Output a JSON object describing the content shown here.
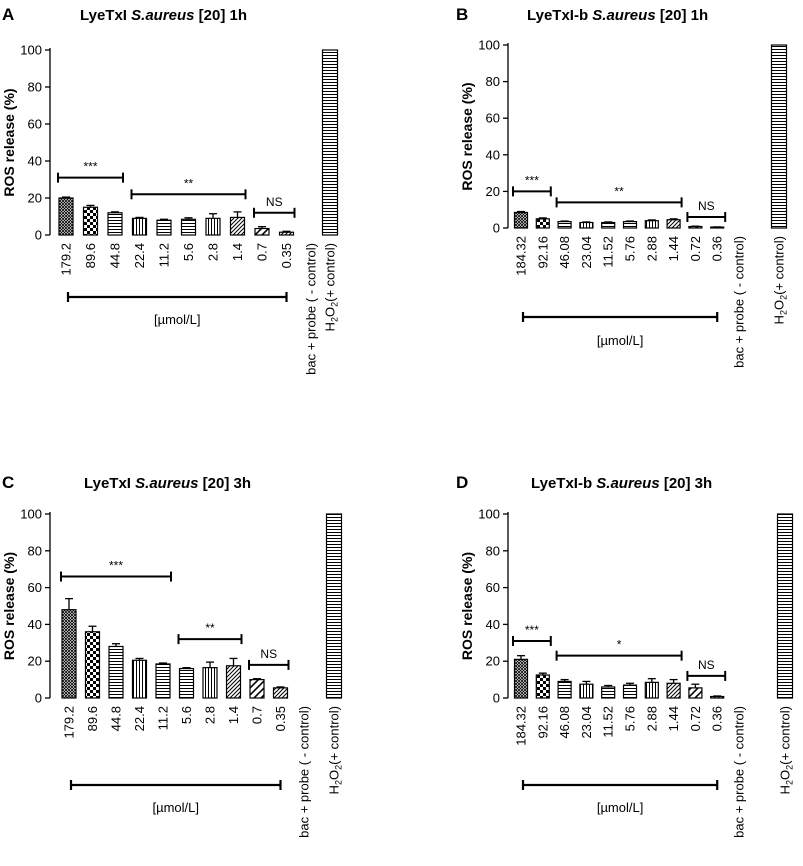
{
  "chart_data": [
    {
      "panel": "A",
      "type": "bar",
      "title_prefix": "LyeTxI ",
      "title_italic": "S.aureus",
      "title_suffix": " [20] 1h",
      "ylabel": "ROS release (%)",
      "ylim": [
        0,
        100
      ],
      "yticks": [
        0,
        20,
        40,
        60,
        80,
        100
      ],
      "categories": [
        "179.2",
        "89.6",
        "44.8",
        "22.4",
        "11.2",
        "5.6",
        "2.8",
        "1.4",
        "0.7",
        "0.35",
        "bac + probe ( - control)",
        "H2O2(+ control)"
      ],
      "values": [
        20,
        15,
        12,
        9,
        8,
        8.5,
        9,
        9.5,
        3.5,
        1.5,
        0,
        100
      ],
      "errors": [
        0.5,
        1,
        0.5,
        0.5,
        0.5,
        0.8,
        2.5,
        3,
        1,
        0.5,
        0,
        0
      ],
      "patterns": [
        "crosshatch",
        "checker",
        "hlines",
        "vlines",
        "hlines",
        "hlines",
        "vlines",
        "diag",
        "diag-wide",
        "diag",
        "none",
        "hlines"
      ],
      "significance": [
        {
          "from": 0,
          "to": 2,
          "label": "***",
          "y": 31
        },
        {
          "from": 3,
          "to": 7,
          "label": "**",
          "y": 22
        },
        {
          "from": 8,
          "to": 9,
          "label": "NS",
          "y": 12
        }
      ],
      "unit_label": "[µmol/L]",
      "unit_range": [
        0,
        9
      ]
    },
    {
      "panel": "B",
      "type": "bar",
      "title_prefix": "LyeTxI-b ",
      "title_italic": "S.aureus",
      "title_suffix": " [20] 1h",
      "ylabel": "ROS release (%)",
      "ylim": [
        0,
        100
      ],
      "yticks": [
        0,
        20,
        40,
        60,
        80,
        100
      ],
      "categories": [
        "184.32",
        "92.16",
        "46.08",
        "23.04",
        "11.52",
        "5.76",
        "2.88",
        "1.44",
        "0.72",
        "0.36",
        "bac + probe ( - control)",
        "H2O2(+ control)"
      ],
      "values": [
        8.5,
        5,
        3.5,
        3,
        3,
        3.5,
        4,
        4.5,
        0.8,
        0.5,
        0,
        100
      ],
      "errors": [
        0.5,
        0.5,
        0.3,
        0.3,
        0.3,
        0.3,
        0.4,
        0.5,
        0.2,
        0.1,
        0,
        0
      ],
      "patterns": [
        "crosshatch",
        "checker",
        "hlines",
        "vlines",
        "hlines",
        "hlines",
        "vlines",
        "diag",
        "diag-wide",
        "diag",
        "none",
        "hlines"
      ],
      "significance": [
        {
          "from": 0,
          "to": 1,
          "label": "***",
          "y": 20
        },
        {
          "from": 2,
          "to": 7,
          "label": "**",
          "y": 14
        },
        {
          "from": 8,
          "to": 9,
          "label": "NS",
          "y": 6
        }
      ],
      "unit_label": "[µmol/L]",
      "unit_range": [
        0,
        9
      ]
    },
    {
      "panel": "C",
      "type": "bar",
      "title_prefix": "LyeTxI ",
      "title_italic": "S.aureus",
      "title_suffix": " [20] 3h",
      "ylabel": "ROS release (%)",
      "ylim": [
        0,
        100
      ],
      "yticks": [
        0,
        20,
        40,
        60,
        80,
        100
      ],
      "categories": [
        "179.2",
        "89.6",
        "44.8",
        "22.4",
        "11.2",
        "5.6",
        "2.8",
        "1.4",
        "0.7",
        "0.35",
        "bac + probe ( - control)",
        "H2O2(+ control)"
      ],
      "values": [
        48,
        36,
        28,
        20.5,
        18.5,
        16,
        16.5,
        17.5,
        10,
        5.5,
        0,
        100
      ],
      "errors": [
        6,
        3,
        1.5,
        1,
        0.5,
        0.5,
        3,
        4,
        0.5,
        0.5,
        0,
        0
      ],
      "patterns": [
        "crosshatch",
        "checker",
        "hlines",
        "vlines",
        "hlines",
        "hlines",
        "vlines",
        "diag",
        "diag-wide",
        "diag",
        "none",
        "hlines"
      ],
      "significance": [
        {
          "from": 0,
          "to": 4,
          "label": "***",
          "y": 66
        },
        {
          "from": 5,
          "to": 7,
          "label": "**",
          "y": 32
        },
        {
          "from": 8,
          "to": 9,
          "label": "NS",
          "y": 18
        }
      ],
      "unit_label": "[µmol/L]",
      "unit_range": [
        0,
        9
      ]
    },
    {
      "panel": "D",
      "type": "bar",
      "title_prefix": "LyeTxI-b ",
      "title_italic": "S.aureus",
      "title_suffix": " [20] 3h",
      "ylabel": "ROS release (%)",
      "ylim": [
        0,
        100
      ],
      "yticks": [
        0,
        20,
        40,
        60,
        80,
        100
      ],
      "categories": [
        "184.32",
        "92.16",
        "46.08",
        "23.04",
        "11.52",
        "5.76",
        "2.88",
        "1.44",
        "0.72",
        "0.36",
        "bac + probe ( - control)",
        "H2O2(+ control)"
      ],
      "values": [
        21,
        12.5,
        9,
        7.5,
        6,
        7,
        8.5,
        8,
        5.5,
        0.8,
        0,
        100
      ],
      "errors": [
        2,
        1,
        1,
        1.5,
        0.8,
        1,
        2,
        2,
        2,
        0.3,
        0,
        0
      ],
      "patterns": [
        "crosshatch",
        "checker",
        "hlines",
        "vlines",
        "hlines",
        "hlines",
        "vlines",
        "diag",
        "diag-wide",
        "diag",
        "none",
        "hlines"
      ],
      "significance": [
        {
          "from": 0,
          "to": 1,
          "label": "***",
          "y": 31
        },
        {
          "from": 2,
          "to": 7,
          "label": "*",
          "y": 23
        },
        {
          "from": 8,
          "to": 9,
          "label": "NS",
          "y": 12
        }
      ],
      "unit_label": "[µmol/L]",
      "unit_range": [
        0,
        9
      ]
    }
  ]
}
